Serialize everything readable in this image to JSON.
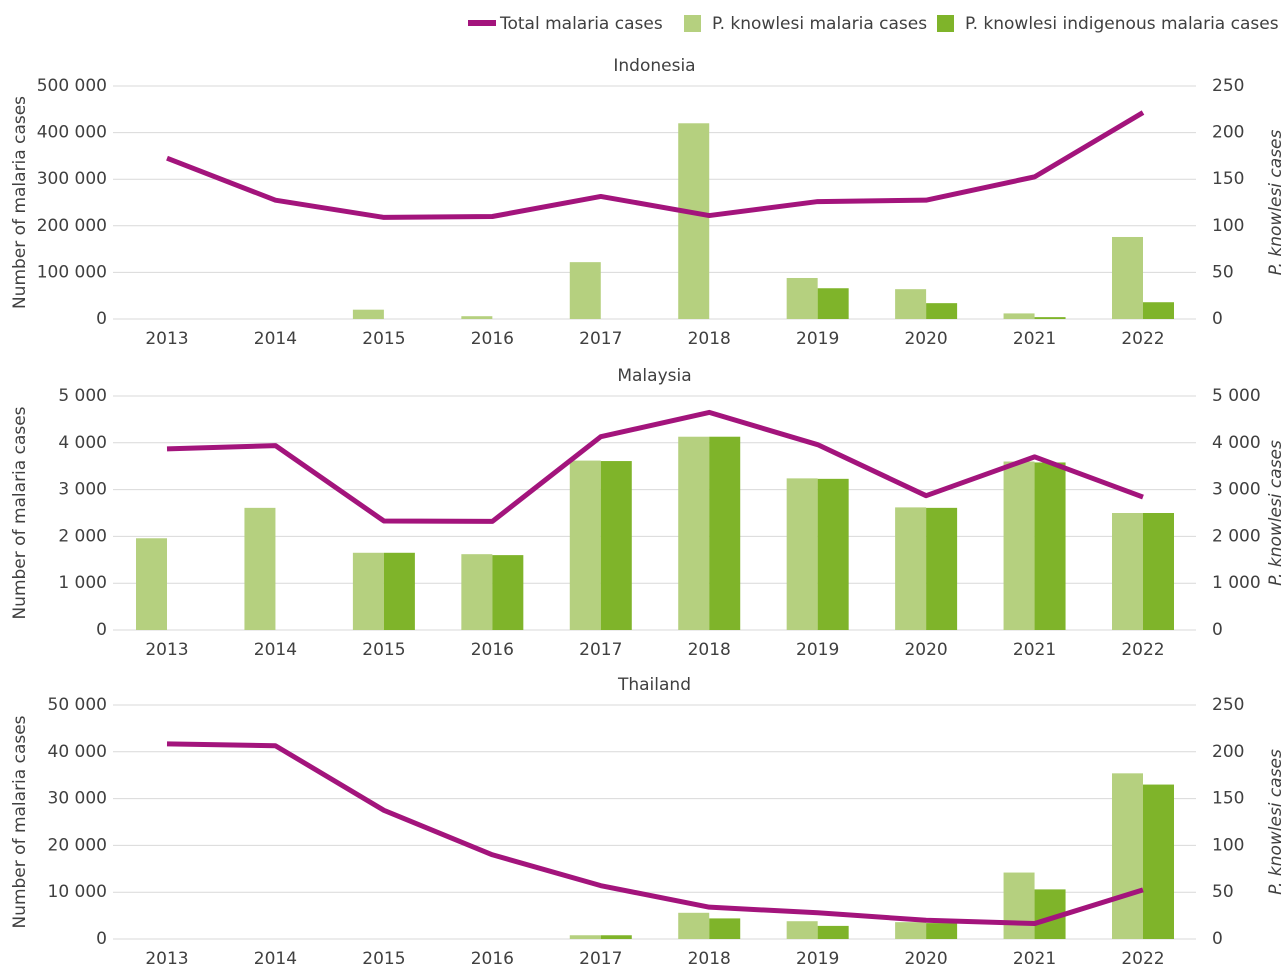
{
  "chart_data": [
    {
      "type": "bar_line",
      "title": "Indonesia",
      "y_label": "Number of malaria cases",
      "y2_label": "P. knowlesi cases",
      "categories": [
        "2013",
        "2014",
        "2015",
        "2016",
        "2017",
        "2018",
        "2019",
        "2020",
        "2021",
        "2022"
      ],
      "ylim": [
        0,
        500000
      ],
      "yticks": [
        0,
        {
          "value": 100000,
          "label": "100 000"
        },
        {
          "value": 200000,
          "label": "200 000"
        },
        {
          "value": 300000,
          "label": "300 000"
        },
        {
          "value": 400000,
          "label": "400 000"
        },
        {
          "value": 500000,
          "label": "500 000"
        }
      ],
      "y2lim": [
        0,
        250
      ],
      "y2ticks": [
        0,
        50,
        100,
        150,
        200,
        250
      ],
      "grid": true,
      "series": [
        {
          "name": "Total malaria cases",
          "type": "line",
          "color": "#a3147c",
          "values": [
            345000,
            255000,
            218000,
            220000,
            263000,
            222000,
            252000,
            255000,
            305000,
            443000
          ]
        },
        {
          "name": "P. knowlesi malaria cases",
          "type": "bar",
          "axis": "y2",
          "color": "#b5d07f",
          "values": [
            0,
            0,
            10,
            3,
            61,
            210,
            44,
            32,
            6,
            88
          ]
        },
        {
          "name": "P. knowlesi indigenous malaria cases",
          "type": "bar",
          "axis": "y2",
          "color": "#7fb42a",
          "values": [
            0,
            0,
            0,
            0,
            0,
            0,
            33,
            17,
            2,
            18
          ]
        }
      ]
    },
    {
      "type": "bar_line",
      "title": "Malaysia",
      "y_label": "Number of malaria cases",
      "y2_label": "P. knowlesi cases",
      "categories": [
        "2013",
        "2014",
        "2015",
        "2016",
        "2017",
        "2018",
        "2019",
        "2020",
        "2021",
        "2022"
      ],
      "ylim": [
        0,
        5000
      ],
      "yticks": [
        0,
        {
          "value": 1000,
          "label": "1 000"
        },
        {
          "value": 2000,
          "label": "2 000"
        },
        {
          "value": 3000,
          "label": "3 000"
        },
        {
          "value": 4000,
          "label": "4 000"
        },
        {
          "value": 5000,
          "label": "5 000"
        }
      ],
      "y2lim": [
        0,
        5000
      ],
      "y2ticks": [
        0,
        {
          "value": 1000,
          "label": "1 000"
        },
        {
          "value": 2000,
          "label": "2 000"
        },
        {
          "value": 3000,
          "label": "3 000"
        },
        {
          "value": 4000,
          "label": "4 000"
        },
        {
          "value": 5000,
          "label": "5 000"
        }
      ],
      "grid": true,
      "series": [
        {
          "type": "line",
          "color": "#a3147c",
          "values": [
            3870,
            3940,
            2330,
            2320,
            4130,
            4650,
            3960,
            2870,
            3700,
            2840
          ]
        },
        {
          "type": "bar",
          "axis": "y2",
          "color": "#b5d07f",
          "values": [
            1960,
            2610,
            1650,
            1620,
            3620,
            4130,
            3240,
            2620,
            3600,
            2500
          ]
        },
        {
          "type": "bar",
          "axis": "y2",
          "color": "#7fb42a",
          "values": [
            null,
            null,
            1650,
            1600,
            3610,
            4130,
            3230,
            2610,
            3580,
            2500
          ]
        }
      ]
    },
    {
      "type": "bar_line",
      "title": "Thailand",
      "y_label": "Number of malaria cases",
      "y2_label": "P. knowlesi cases",
      "categories": [
        "2013",
        "2014",
        "2015",
        "2016",
        "2017",
        "2018",
        "2019",
        "2020",
        "2021",
        "2022"
      ],
      "ylim": [
        0,
        50000
      ],
      "yticks": [
        0,
        {
          "value": 10000,
          "label": "10 000"
        },
        {
          "value": 20000,
          "label": "20 000"
        },
        {
          "value": 30000,
          "label": "30 000"
        },
        {
          "value": 40000,
          "label": "40 000"
        },
        {
          "value": 50000,
          "label": "50 000"
        }
      ],
      "y2lim": [
        0,
        250
      ],
      "y2ticks": [
        0,
        50,
        100,
        150,
        200,
        250
      ],
      "grid": true,
      "series": [
        {
          "type": "line",
          "color": "#a3147c",
          "values": [
            41700,
            41300,
            27500,
            18000,
            11400,
            6800,
            5600,
            4000,
            3300,
            10500
          ]
        },
        {
          "type": "bar",
          "axis": "y2",
          "color": "#b5d07f",
          "values": [
            0,
            0,
            0,
            0,
            4,
            28,
            19,
            18,
            71,
            177
          ]
        },
        {
          "type": "bar",
          "axis": "y2",
          "color": "#7fb42a",
          "values": [
            0,
            0,
            0,
            0,
            4,
            22,
            14,
            17,
            53,
            165
          ]
        }
      ]
    }
  ]
}
